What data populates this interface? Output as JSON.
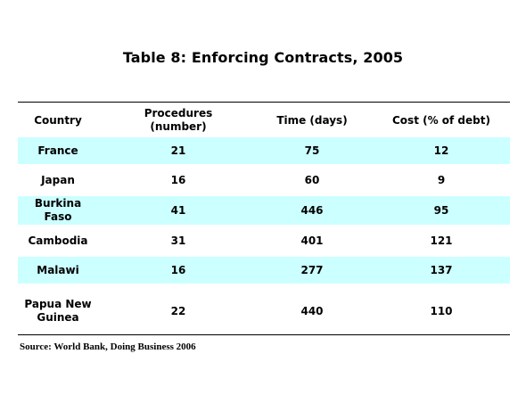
{
  "title": "Table 8: Enforcing Contracts, 2005",
  "columns": {
    "country": "Country",
    "procedures": "Procedures\n(number)",
    "time": "Time (days)",
    "cost": "Cost (% of debt)"
  },
  "rows": [
    {
      "country": "France",
      "procedures": "21",
      "time": "75",
      "cost": "12"
    },
    {
      "country": "Japan",
      "procedures": "16",
      "time": "60",
      "cost": "9"
    },
    {
      "country": "Burkina\nFaso",
      "procedures": "41",
      "time": "446",
      "cost": "95"
    },
    {
      "country": "Cambodia",
      "procedures": "31",
      "time": "401",
      "cost": "121"
    },
    {
      "country": "Malawi",
      "procedures": "16",
      "time": "277",
      "cost": "137"
    },
    {
      "country": "Papua New\nGuinea",
      "procedures": "22",
      "time": "440",
      "cost": "110"
    }
  ],
  "source": "Source: World Bank, Doing Business 2006",
  "colors": {
    "row_shade": "#ccffff",
    "text": "#000000"
  }
}
